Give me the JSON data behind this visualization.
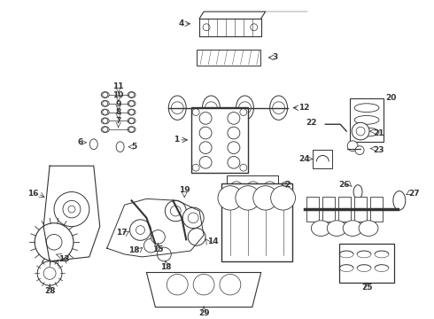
{
  "bg_color": "#ffffff",
  "line_color": "#333333",
  "figsize": [
    4.9,
    3.6
  ],
  "dpi": 100,
  "fs": 6.5
}
